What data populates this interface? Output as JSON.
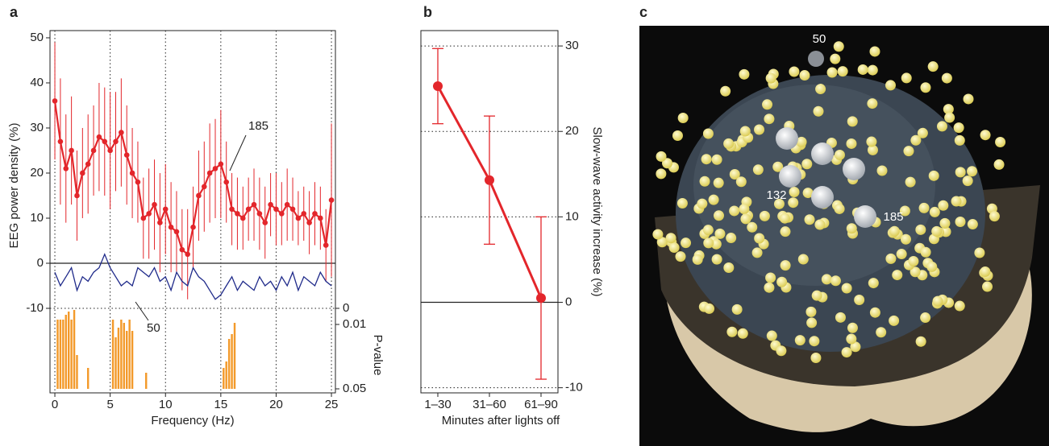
{
  "chart_data": [
    {
      "type": "line",
      "panel_label": "a",
      "xlabel": "Frequency (Hz)",
      "ylabel": "EEG power density (%)",
      "xlim": [
        -0.44,
        25.36
      ],
      "ylim": [
        -10,
        51.6
      ],
      "xticks": [
        0,
        5,
        10,
        15,
        20,
        25
      ],
      "yticks": [
        -10,
        0,
        10,
        20,
        30,
        40,
        50
      ],
      "grid": "x",
      "x": [
        0,
        0.5,
        1,
        1.5,
        2,
        2.5,
        3,
        3.5,
        4,
        4.5,
        5,
        5.5,
        6,
        6.5,
        7,
        7.5,
        8,
        8.5,
        9,
        9.5,
        10,
        10.5,
        11,
        11.5,
        12,
        12.5,
        13,
        13.5,
        14,
        14.5,
        15,
        15.5,
        16,
        16.5,
        17,
        17.5,
        18,
        18.5,
        19,
        19.5,
        20,
        20.5,
        21,
        21.5,
        22,
        22.5,
        23,
        23.5,
        24,
        24.5,
        25
      ],
      "series": [
        {
          "name": "185",
          "color": "#e3262b",
          "values": [
            36,
            27,
            21,
            25,
            15,
            20,
            22,
            25,
            28,
            27,
            25,
            27,
            29,
            24,
            20,
            18,
            10,
            11,
            13,
            9,
            12,
            8,
            7,
            3,
            2,
            8,
            15,
            17,
            20,
            21,
            22,
            18,
            12,
            11,
            10,
            12,
            13,
            11,
            9,
            13,
            12,
            11,
            13,
            12,
            10,
            11,
            9,
            11,
            10,
            4,
            14
          ],
          "errors": [
            13,
            14,
            12,
            12,
            10,
            10,
            11,
            10,
            12,
            12,
            13,
            11,
            12,
            11,
            10,
            9,
            9,
            10,
            10,
            11,
            10,
            10,
            9,
            9,
            10,
            9,
            10,
            10,
            11,
            11,
            12,
            9,
            8,
            8,
            7,
            7,
            8,
            8,
            8,
            7,
            8,
            7,
            8,
            7,
            6,
            6,
            7,
            7,
            7,
            8,
            17
          ]
        },
        {
          "name": "50",
          "color": "#1f2a8a",
          "values": [
            -2,
            -5,
            -3,
            -1,
            -6,
            -3,
            -4,
            -2,
            -1,
            2,
            -1,
            -3,
            -5,
            -4,
            -5,
            -1,
            -2,
            -3,
            -1,
            -4,
            -3,
            -6,
            -2,
            -4,
            -5,
            -1,
            -3,
            -4,
            -6,
            -8,
            -7,
            -5,
            -3,
            -6,
            -4,
            -5,
            -6,
            -3,
            -5,
            -4,
            -6,
            -3,
            -5,
            -2,
            -6,
            -3,
            -4,
            -5,
            -2,
            -4,
            -5
          ]
        }
      ],
      "pvalue": {
        "label": "P-value",
        "color": "#f39a2b",
        "ylim": [
          0,
          0.05
        ],
        "yticks": [
          0,
          0.01,
          0.05
        ],
        "x": [
          0.25,
          0.5,
          0.75,
          1,
          1.25,
          1.5,
          1.75,
          2,
          3,
          5.25,
          5.5,
          5.75,
          6,
          6.25,
          6.5,
          6.75,
          7,
          8.25,
          15.25,
          15.5,
          15.75,
          16,
          16.25
        ],
        "values": [
          0.007,
          0.007,
          0.007,
          0.004,
          0.002,
          0.007,
          0.001,
          0.029,
          0.037,
          0.007,
          0.018,
          0.012,
          0.007,
          0.009,
          0.014,
          0.007,
          0.014,
          0.04,
          0.037,
          0.033,
          0.019,
          0.016,
          0.009
        ]
      }
    },
    {
      "type": "line",
      "panel_label": "b",
      "xlabel": "Minutes after lights off",
      "ylabel": "Slow-wave activity increase (%)",
      "categories": [
        "1–30",
        "31–60",
        "61–90"
      ],
      "ylim": [
        -10.6,
        31.8
      ],
      "yticks": [
        -10,
        0,
        10,
        20,
        30
      ],
      "grid": "y",
      "series": [
        {
          "color": "#e3262b",
          "values": [
            25.3,
            14.3,
            0.5
          ],
          "errors": [
            4.4,
            7.5,
            9.5
          ]
        }
      ]
    }
  ],
  "brain_map": {
    "panel_label": "c",
    "electrode_labels": [
      "50",
      "132",
      "185"
    ]
  }
}
